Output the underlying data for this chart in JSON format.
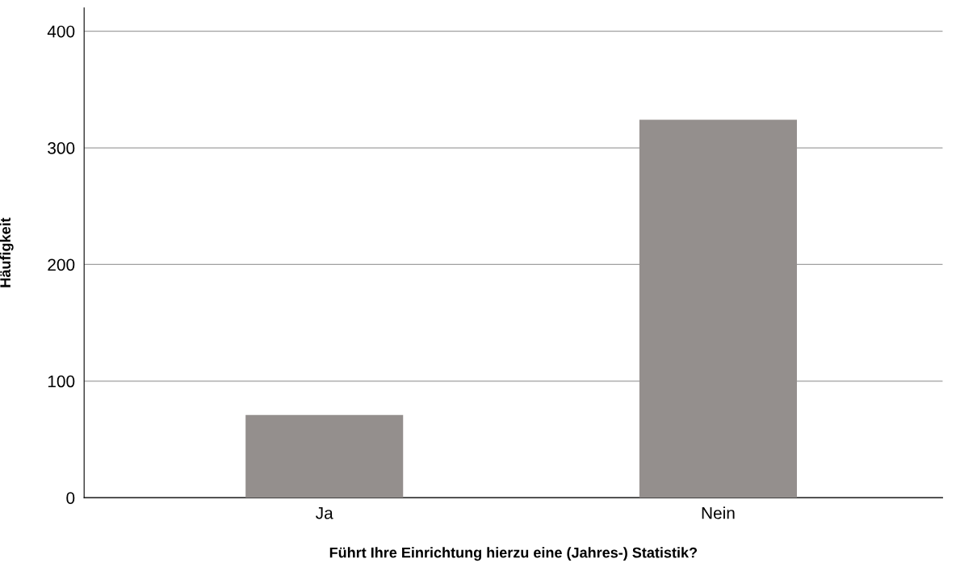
{
  "chart_data": {
    "type": "bar",
    "xlabel": "Führt Ihre Einrichtung hierzu eine (Jahres-) Statistik?",
    "ylabel": "Häufigkeit",
    "categories": [
      "Ja",
      "Nein"
    ],
    "values": [
      71,
      324
    ],
    "color": "#948f8d",
    "ylim": [
      0,
      420
    ],
    "yticks": [
      0,
      100,
      200,
      300,
      400
    ],
    "grid": "y"
  }
}
